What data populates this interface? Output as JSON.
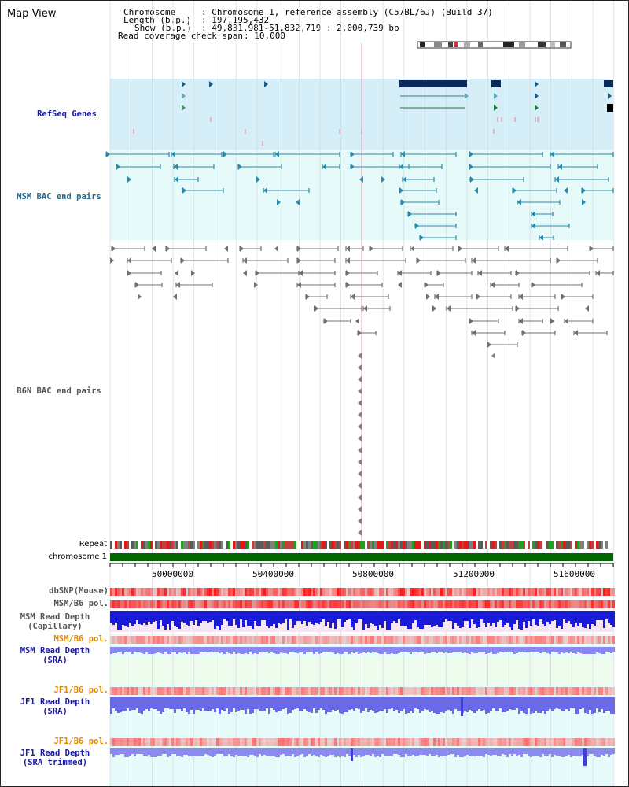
{
  "view_title": "Map View",
  "info": {
    "chromosome_label": "Chromosome",
    "chromosome_value": ": Chromosome 1, reference assembly (C57BL/6J) (Build 37)",
    "length_label": "Length (b.p.)",
    "length_value": ": 197,195,432",
    "show_label": "Show (b.p.)",
    "show_value": ": 49,831,981-51,832,719 : 2,000,739 bp",
    "coverage_label": "Read coverage check span",
    "coverage_value": ": 10,000"
  },
  "tracks": {
    "refseq": "RefSeq Genes",
    "msm_bac": "MSM BAC end pairs",
    "b6n_bac": "B6N BAC end pairs",
    "repeat": "Repeat",
    "chromosome": "chromosome 1",
    "dbsnp": "dbSNP(Mouse)",
    "msm_b6_pol_1": "MSM/B6 pol.",
    "msm_depth_cap_1": "MSM Read Depth",
    "msm_depth_cap_2": "(Capillary)",
    "msm_b6_pol_2": "MSM/B6 pol.",
    "msm_depth_sra_1": "MSM Read Depth",
    "msm_depth_sra_2": "(SRA)",
    "jf1_b6_pol_1": "JF1/B6 pol.",
    "jf1_depth_sra_1": "JF1 Read Depth",
    "jf1_depth_sra_2": "(SRA)",
    "jf1_b6_pol_2": "JF1/B6 pol.",
    "jf1_depth_trim_1": "JF1 Read Depth",
    "jf1_depth_trim_2": "(SRA trimmed)"
  },
  "axis_ticks": [
    "50000000",
    "50400000",
    "50800000",
    "51200000",
    "51600000"
  ],
  "colors": {
    "refseq_band": "#d6eef8",
    "bac_band": "#e6fafa",
    "gene_dark": "#0a2a5a",
    "gene_teal": "#2a7a9a",
    "gene_green": "#1a7a3a",
    "chromosome_bar": "#006600",
    "snp_red": "#e82020",
    "depth_blue": "#2020e0"
  }
}
